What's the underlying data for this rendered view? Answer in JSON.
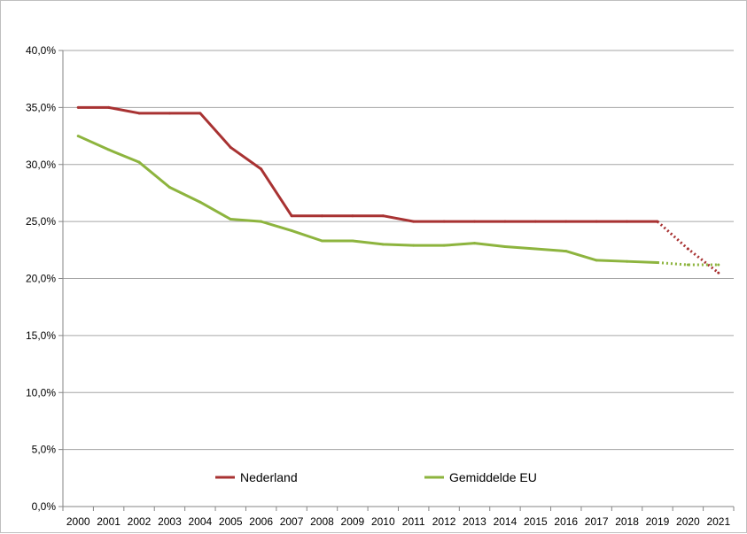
{
  "chart_data": {
    "type": "line",
    "title": "",
    "xlabel": "",
    "ylabel": "",
    "categories": [
      "2000",
      "2001",
      "2002",
      "2003",
      "2004",
      "2005",
      "2006",
      "2007",
      "2008",
      "2009",
      "2010",
      "2011",
      "2012",
      "2013",
      "2014",
      "2015",
      "2016",
      "2017",
      "2018",
      "2019",
      "2020",
      "2021"
    ],
    "y_tick_labels": [
      "0,0%",
      "5,0%",
      "10,0%",
      "15,0%",
      "20,0%",
      "25,0%",
      "30,0%",
      "35,0%",
      "40,0%"
    ],
    "ylim": [
      0,
      40
    ],
    "grid": true,
    "legend_position": "bottom-inside",
    "series": [
      {
        "name": "Nederland",
        "color": "#a83232",
        "values": [
          35.0,
          35.0,
          34.5,
          34.5,
          34.5,
          31.5,
          29.6,
          25.5,
          25.5,
          25.5,
          25.5,
          25.0,
          25.0,
          25.0,
          25.0,
          25.0,
          25.0,
          25.0,
          25.0,
          25.0,
          22.6,
          20.5
        ],
        "dotted_from_index": 19
      },
      {
        "name": "Gemiddelde EU",
        "color": "#8db43e",
        "values": [
          32.5,
          31.3,
          30.2,
          28.0,
          26.7,
          25.2,
          25.0,
          24.2,
          23.3,
          23.3,
          23.0,
          22.9,
          22.9,
          23.1,
          22.8,
          22.6,
          22.4,
          21.6,
          21.5,
          21.4,
          21.2,
          21.2
        ],
        "dotted_from_index": 19
      }
    ]
  }
}
